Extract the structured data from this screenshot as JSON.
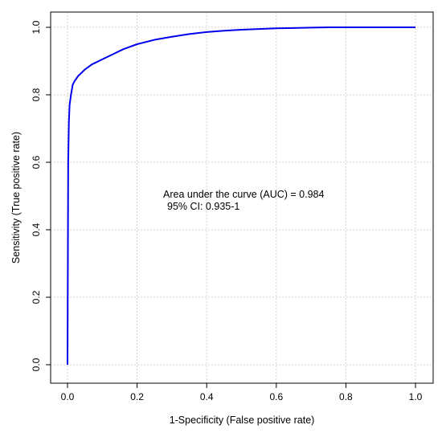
{
  "chart_data": {
    "type": "line",
    "title": "",
    "xlabel": "1-Specificity (False positive rate)",
    "ylabel": "Sensitivity (True positive rate)",
    "xlim": [
      0,
      1
    ],
    "ylim": [
      0,
      1
    ],
    "xticks": [
      "0.0",
      "0.2",
      "0.4",
      "0.6",
      "0.8",
      "1.0"
    ],
    "yticks": [
      "0.0",
      "0.2",
      "0.4",
      "0.6",
      "0.8",
      "1.0"
    ],
    "grid": true,
    "series": [
      {
        "color": "#0000ee",
        "x": [
          0,
          0.002,
          0.004,
          0.006,
          0.01,
          0.015,
          0.02,
          0.03,
          0.04,
          0.05,
          0.07,
          0.1,
          0.13,
          0.16,
          0.2,
          0.25,
          0.3,
          0.35,
          0.4,
          0.45,
          0.5,
          0.55,
          0.6,
          0.65,
          0.7,
          0.75,
          0.8,
          0.9,
          1.0
        ],
        "y": [
          0,
          0.6,
          0.72,
          0.77,
          0.8,
          0.83,
          0.84,
          0.855,
          0.865,
          0.875,
          0.89,
          0.905,
          0.92,
          0.935,
          0.95,
          0.963,
          0.972,
          0.98,
          0.986,
          0.99,
          0.993,
          0.995,
          0.997,
          0.998,
          0.999,
          1.0,
          1.0,
          1.0,
          1.0
        ]
      }
    ],
    "annotations": [
      "Area under the curve (AUC) = 0.984",
      "95% CI: 0.935-1"
    ]
  }
}
